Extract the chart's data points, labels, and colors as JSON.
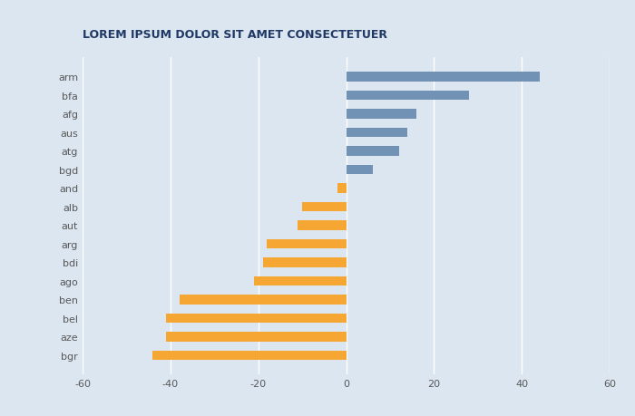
{
  "categories": [
    "arm",
    "bfa",
    "afg",
    "aus",
    "atg",
    "bgd",
    "and",
    "alb",
    "aut",
    "arg",
    "bdi",
    "ago",
    "ben",
    "bel",
    "aze",
    "bgr"
  ],
  "values": [
    44,
    28,
    16,
    14,
    12,
    6,
    -2,
    -10,
    -11,
    -18,
    -19,
    -21,
    -38,
    -41,
    -41,
    -44
  ],
  "bar_colors": [
    "#7191b5",
    "#7191b5",
    "#7191b5",
    "#7191b5",
    "#7191b5",
    "#7191b5",
    "#f5a633",
    "#f5a633",
    "#f5a633",
    "#f5a633",
    "#f5a633",
    "#f5a633",
    "#f5a633",
    "#f5a633",
    "#f5a633",
    "#f5a633"
  ],
  "title": "LOREM IPSUM DOLOR SIT AMET CONSECTETUER",
  "title_color": "#1f3864",
  "title_fontsize": 9,
  "background_color": "#dce6f1",
  "xlim": [
    -60,
    60
  ],
  "xticks": [
    -60,
    -40,
    -20,
    0,
    20,
    40,
    60
  ],
  "grid_color": "#ffffff",
  "tick_label_color": "#595959",
  "tick_fontsize": 8,
  "bar_height": 0.5
}
